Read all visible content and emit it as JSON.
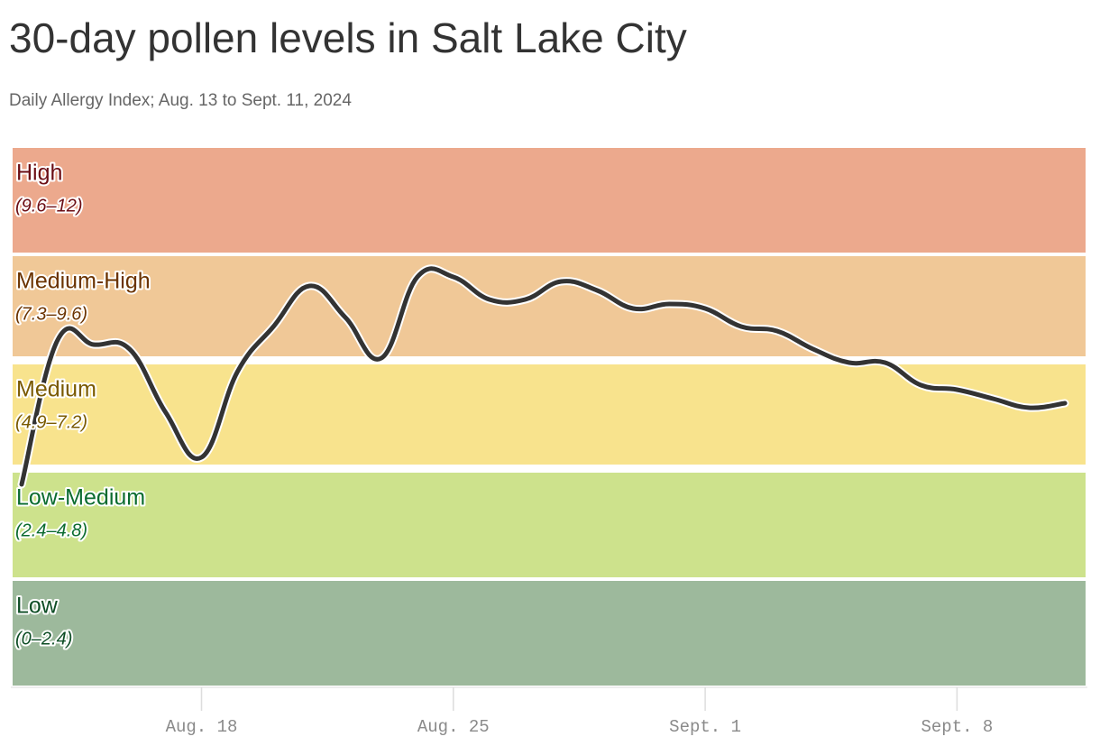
{
  "chart_data": {
    "type": "line",
    "title": "30-day pollen levels in Salt Lake City",
    "subtitle": "Daily Allergy Index; Aug. 13 to Sept. 11, 2024",
    "categories": [
      null,
      null,
      null,
      null,
      null,
      "Aug. 18",
      null,
      null,
      null,
      null,
      null,
      null,
      "Aug. 25",
      null,
      null,
      null,
      null,
      null,
      null,
      "Sept. 1",
      null,
      null,
      null,
      null,
      null,
      null,
      "Sept. 8",
      null,
      null,
      null
    ],
    "series": [
      {
        "color": "#333333",
        "values": [
          4.5,
          7.7,
          7.6,
          7.5,
          6.1,
          5.1,
          7.0,
          8.0,
          8.9,
          8.2,
          7.3,
          9.1,
          9.1,
          8.6,
          8.6,
          9.0,
          8.8,
          8.4,
          8.5,
          8.4,
          8.0,
          7.9,
          7.5,
          7.2,
          7.2,
          6.7,
          6.6,
          6.4,
          6.2,
          6.3
        ]
      }
    ],
    "ylim": [
      0,
      12
    ],
    "bands": [
      {
        "label": "High",
        "range": "(9.6–12)",
        "from": 9.6,
        "to": 12,
        "color": "#eca98d",
        "text_color": "#6b0d14"
      },
      {
        "label": "Medium-High",
        "range": "(7.3–9.6)",
        "from": 7.3,
        "to": 9.6,
        "color": "#f0c897",
        "text_color": "#6b3300"
      },
      {
        "label": "Medium",
        "range": "(4.9–7.2)",
        "from": 4.9,
        "to": 7.2,
        "color": "#f8e38d",
        "text_color": "#7a5a00"
      },
      {
        "label": "Low-Medium",
        "range": "(2.4–4.8)",
        "from": 2.4,
        "to": 4.8,
        "color": "#cde28c",
        "text_color": "#0b6b2f"
      },
      {
        "label": "Low",
        "range": "(0–2.4)",
        "from": 0,
        "to": 2.4,
        "color": "#9db99c",
        "text_color": "#0d4d25"
      }
    ]
  }
}
